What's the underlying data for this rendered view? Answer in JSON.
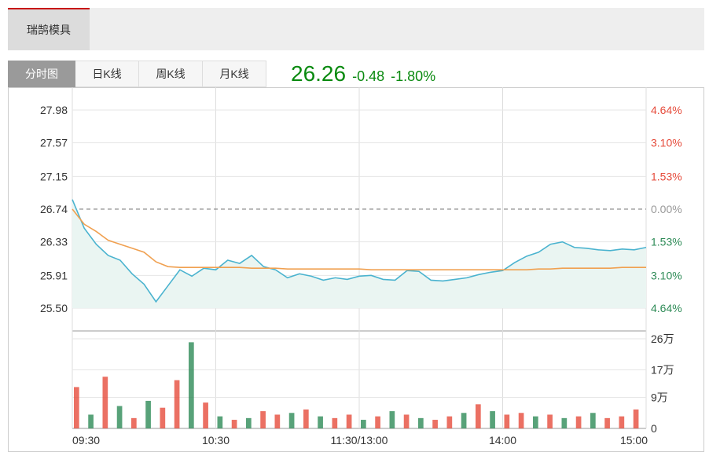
{
  "header": {
    "stock_name": "瑞鹄模具"
  },
  "tabs": [
    {
      "label": "分时图",
      "active": true
    },
    {
      "label": "日K线",
      "active": false
    },
    {
      "label": "周K线",
      "active": false
    },
    {
      "label": "月K线",
      "active": false
    }
  ],
  "quote": {
    "price": "26.26",
    "change": "-0.48",
    "change_pct": "-1.80%"
  },
  "colors": {
    "price": "#4ab3cf",
    "avg": "#f0a050",
    "up": "#e64c3c",
    "down": "#2e8b57",
    "quote": "#0a8a10"
  },
  "chart_data": [
    {
      "type": "line",
      "name": "intraday",
      "prev_close": 26.74,
      "ylim": [
        25.5,
        27.98
      ],
      "y_ticks_left": [
        "27.98",
        "27.57",
        "27.15",
        "26.74",
        "26.33",
        "25.91",
        "25.50"
      ],
      "y_ticks_right": [
        "4.64%",
        "3.10%",
        "1.53%",
        "0.00%",
        "1.53%",
        "3.10%",
        "4.64%"
      ],
      "x_ticks": [
        "09:30",
        "10:30",
        "11:30/13:00",
        "14:00",
        "15:00"
      ],
      "x_index": [
        0,
        5,
        10,
        15,
        20,
        25,
        30,
        35,
        40,
        45,
        50,
        55,
        60,
        65,
        70,
        75,
        80,
        85,
        90,
        95,
        100,
        105,
        110,
        115,
        120,
        125,
        130,
        135,
        140,
        145,
        150,
        155,
        160,
        165,
        170,
        175,
        180,
        185,
        190,
        195,
        200,
        205,
        210,
        215,
        220,
        225,
        230,
        235,
        240
      ],
      "series": [
        {
          "name": "",
          "values": [
            26.86,
            26.5,
            26.3,
            26.16,
            26.1,
            25.93,
            25.8,
            25.58,
            25.78,
            25.98,
            25.9,
            26.0,
            25.98,
            26.1,
            26.06,
            26.16,
            26.02,
            25.98,
            25.88,
            25.93,
            25.9,
            25.85,
            25.88,
            25.86,
            25.9,
            25.91,
            25.86,
            25.85,
            25.97,
            25.96,
            25.85,
            25.84,
            25.86,
            25.88,
            25.92,
            25.95,
            25.97,
            26.07,
            26.15,
            26.2,
            26.3,
            26.33,
            26.26,
            26.25,
            26.23,
            26.22,
            26.24,
            26.23,
            26.26
          ]
        },
        {
          "name": "",
          "values": [
            26.74,
            26.55,
            26.46,
            26.35,
            26.3,
            26.25,
            26.2,
            26.08,
            26.02,
            26.01,
            26.01,
            26.01,
            26.01,
            26.01,
            26.01,
            26.0,
            26.0,
            26.0,
            25.99,
            25.99,
            25.99,
            25.99,
            25.99,
            25.99,
            25.99,
            25.98,
            25.98,
            25.98,
            25.98,
            25.98,
            25.98,
            25.98,
            25.98,
            25.98,
            25.98,
            25.98,
            25.98,
            25.98,
            25.98,
            25.99,
            25.99,
            26.0,
            26.0,
            26.0,
            26.0,
            26.0,
            26.01,
            26.01,
            26.01
          ]
        }
      ]
    },
    {
      "type": "bar",
      "name": "volume",
      "ylim": [
        0,
        260000
      ],
      "y_ticks": [
        "0",
        "9万",
        "17万",
        "26万"
      ],
      "x_index": [
        0,
        6,
        12,
        18,
        24,
        30,
        36,
        42,
        48,
        54,
        60,
        66,
        72,
        78,
        84,
        90,
        96,
        102,
        108,
        114,
        120,
        126,
        132,
        138,
        144,
        150,
        156,
        162,
        168,
        174,
        180,
        186,
        192,
        198,
        204,
        210,
        216,
        222,
        228,
        234
      ],
      "values": [
        120000,
        40000,
        150000,
        65000,
        30000,
        80000,
        60000,
        140000,
        250000,
        75000,
        35000,
        25000,
        30000,
        50000,
        40000,
        45000,
        55000,
        35000,
        30000,
        40000,
        25000,
        35000,
        50000,
        40000,
        30000,
        25000,
        35000,
        45000,
        70000,
        50000,
        40000,
        45000,
        35000,
        40000,
        30000,
        35000,
        45000,
        30000,
        35000,
        55000
      ],
      "up": [
        true,
        false,
        true,
        false,
        true,
        false,
        true,
        true,
        false,
        true,
        false,
        true,
        false,
        true,
        true,
        false,
        true,
        false,
        true,
        true,
        false,
        true,
        false,
        true,
        false,
        true,
        true,
        false,
        true,
        false,
        true,
        true,
        false,
        true,
        false,
        true,
        false,
        true,
        true,
        true
      ]
    }
  ]
}
